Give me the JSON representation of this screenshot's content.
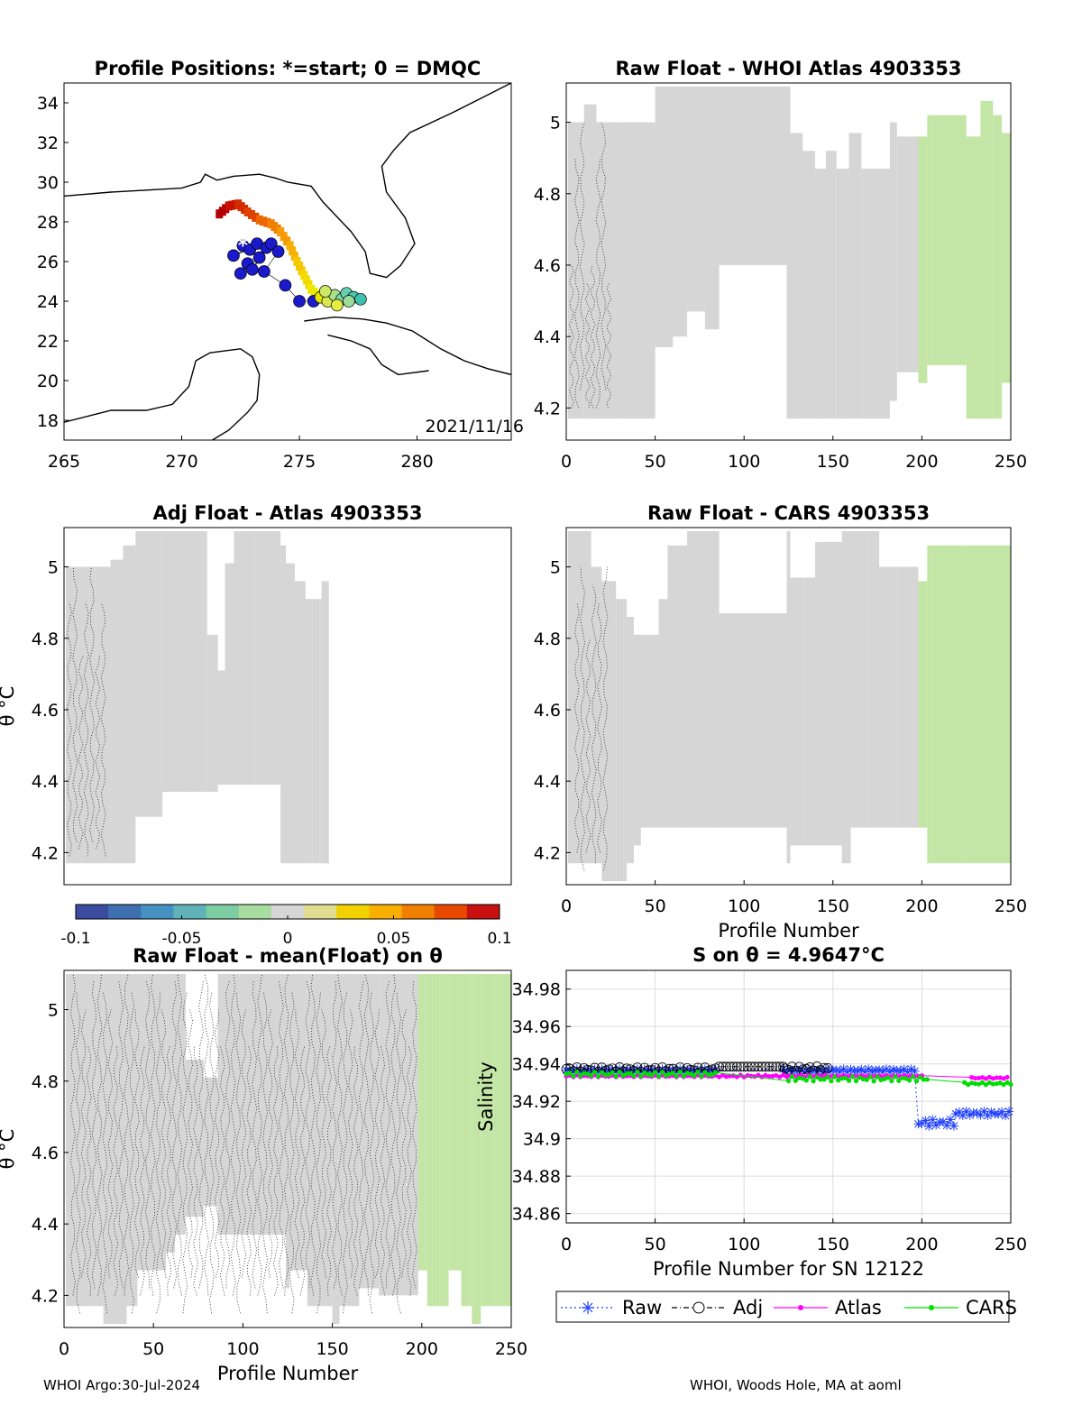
{
  "figure": {
    "footer_left": "WHOI Argo:30-Jul-2024",
    "footer_right": "WHOI, Woods Hole, MA at aoml"
  },
  "colors": {
    "grey_fill": "#d6d6d6",
    "green_fill": "#c3e6a6",
    "raw": "#1f3fff",
    "adj": "#000000",
    "atlas": "#ff00ff",
    "cars": "#00dd00"
  },
  "chart_data": [
    {
      "id": "map",
      "type": "scatter",
      "title": "Profile Positions: *=start; 0 = DMQC",
      "xlim": [
        265,
        284
      ],
      "ylim": [
        17,
        35
      ],
      "x_ticks": [
        265,
        270,
        275,
        280
      ],
      "y_ticks": [
        18,
        20,
        22,
        24,
        26,
        28,
        30,
        32,
        34
      ],
      "annotation": "2021/11/16",
      "track": [
        {
          "lon": 272.6,
          "lat": 26.8,
          "color": "#1a1acc"
        },
        {
          "lon": 272.9,
          "lat": 26.6,
          "color": "#1a1acc"
        },
        {
          "lon": 272.2,
          "lat": 26.3,
          "color": "#1a1acc"
        },
        {
          "lon": 273.2,
          "lat": 26.9,
          "color": "#1a1acc"
        },
        {
          "lon": 273.6,
          "lat": 26.7,
          "color": "#1a1acc"
        },
        {
          "lon": 272.8,
          "lat": 25.9,
          "color": "#1a1acc"
        },
        {
          "lon": 272.5,
          "lat": 25.4,
          "color": "#1a1acc"
        },
        {
          "lon": 273.3,
          "lat": 26.2,
          "color": "#1a1acc"
        },
        {
          "lon": 273.0,
          "lat": 25.6,
          "color": "#1a1acc"
        },
        {
          "lon": 273.8,
          "lat": 26.9,
          "color": "#1a1acc"
        },
        {
          "lon": 274.1,
          "lat": 26.5,
          "color": "#1a1acc"
        },
        {
          "lon": 273.5,
          "lat": 25.5,
          "color": "#1a1acc"
        },
        {
          "lon": 274.4,
          "lat": 24.8,
          "color": "#1a1acc"
        },
        {
          "lon": 275.0,
          "lat": 24.0,
          "color": "#1a1acc"
        },
        {
          "lon": 275.6,
          "lat": 24.0,
          "color": "#1a1acc"
        },
        {
          "lon": 275.9,
          "lat": 24.2,
          "color": "#e6e600"
        },
        {
          "lon": 276.2,
          "lat": 24.0,
          "color": "#d9e64d"
        },
        {
          "lon": 276.5,
          "lat": 24.3,
          "color": "#a6e08a"
        },
        {
          "lon": 276.8,
          "lat": 24.1,
          "color": "#80d9a6"
        },
        {
          "lon": 277.0,
          "lat": 24.4,
          "color": "#66d0b3"
        },
        {
          "lon": 277.3,
          "lat": 24.2,
          "color": "#4dc9b3"
        },
        {
          "lon": 277.6,
          "lat": 24.1,
          "color": "#40c0b0"
        },
        {
          "lon": 276.1,
          "lat": 24.5,
          "color": "#ccea66"
        },
        {
          "lon": 276.6,
          "lat": 23.8,
          "color": "#e6ee44"
        },
        {
          "lon": 277.1,
          "lat": 24.0,
          "color": "#99dd99"
        }
      ],
      "path": [
        {
          "lon": 271.6,
          "lat": 28.4,
          "color": "#b30000"
        },
        {
          "lon": 272.0,
          "lat": 28.8,
          "color": "#c81000"
        },
        {
          "lon": 272.4,
          "lat": 28.9,
          "color": "#d42a00"
        },
        {
          "lon": 272.8,
          "lat": 28.5,
          "color": "#e04000"
        },
        {
          "lon": 273.3,
          "lat": 28.1,
          "color": "#ee6600"
        },
        {
          "lon": 273.8,
          "lat": 27.9,
          "color": "#f28000"
        },
        {
          "lon": 274.2,
          "lat": 27.5,
          "color": "#f59a00"
        },
        {
          "lon": 274.6,
          "lat": 26.8,
          "color": "#f7b000"
        },
        {
          "lon": 274.9,
          "lat": 26.0,
          "color": "#f5c800"
        },
        {
          "lon": 275.2,
          "lat": 25.3,
          "color": "#f2dc00"
        },
        {
          "lon": 275.5,
          "lat": 24.6,
          "color": "#eaea00"
        },
        {
          "lon": 275.9,
          "lat": 24.2,
          "color": "#e6e600"
        }
      ]
    },
    {
      "id": "whoi",
      "type": "heatmap",
      "title": "Raw Float - WHOI Atlas  4903353",
      "xlim": [
        0,
        250
      ],
      "ylim": [
        4.11,
        5.11
      ],
      "x_ticks": [
        0,
        50,
        100,
        150,
        200,
        250
      ],
      "y_ticks": [
        4.2,
        4.4,
        4.6,
        4.8,
        5
      ],
      "x_tick_labels": [
        "0",
        "50",
        "100",
        "150",
        "200",
        "250"
      ],
      "y_tick_labels": [
        "4.2",
        "4.4",
        "4.6",
        "4.8",
        "5"
      ],
      "grey_blocks": [
        [
          1,
          4.17,
          5.0
        ],
        [
          10,
          4.17,
          5.05
        ],
        [
          17,
          4.17,
          5.0
        ],
        [
          30,
          4.17,
          5.0
        ],
        [
          50,
          4.37,
          5.1
        ],
        [
          60,
          4.4,
          5.1
        ],
        [
          68,
          4.47,
          5.1
        ],
        [
          78,
          4.42,
          5.1
        ],
        [
          86,
          4.6,
          5.1
        ],
        [
          124,
          4.17,
          5.1
        ],
        [
          126,
          4.17,
          4.97
        ],
        [
          133,
          4.17,
          4.92
        ],
        [
          140,
          4.17,
          4.87
        ],
        [
          146,
          4.17,
          4.92
        ],
        [
          152,
          4.17,
          4.87
        ],
        [
          159,
          4.17,
          4.97
        ],
        [
          166,
          4.17,
          4.87
        ],
        [
          182,
          4.22,
          5.0
        ],
        [
          186,
          4.3,
          4.96
        ],
        [
          198,
          4.3,
          4.96
        ]
      ],
      "green_blocks": [
        [
          198,
          4.27,
          4.96
        ],
        [
          203,
          4.32,
          5.02
        ],
        [
          206,
          4.32,
          5.02
        ],
        [
          225,
          4.17,
          4.96
        ],
        [
          233,
          4.17,
          5.06
        ],
        [
          240,
          4.17,
          5.02
        ],
        [
          245,
          4.27,
          4.97
        ],
        [
          250,
          4.27,
          4.97
        ]
      ],
      "lines": [
        [
          4.2,
          4.6
        ],
        [
          4.2,
          4.9
        ],
        [
          4.25,
          5.0
        ],
        [
          4.2,
          4.55
        ]
      ],
      "line_x_range": [
        3,
        24
      ],
      "xlabel": "",
      "ylabel": ""
    },
    {
      "id": "adj",
      "type": "heatmap",
      "title": "Adj Float - Atlas  4903353",
      "xlim": [
        0,
        250
      ],
      "ylim": [
        4.11,
        5.11
      ],
      "x_ticks": [],
      "y_ticks": [
        4.2,
        4.4,
        4.6,
        4.8,
        5
      ],
      "y_tick_labels": [
        "4.2",
        "4.4",
        "4.6",
        "4.8",
        "5"
      ],
      "ylabel": "θ °C",
      "grey_blocks": [
        [
          1,
          4.17,
          5.0
        ],
        [
          18,
          4.17,
          5.0
        ],
        [
          26,
          4.17,
          5.02
        ],
        [
          33,
          4.17,
          5.06
        ],
        [
          40,
          4.3,
          5.1
        ],
        [
          55,
          4.37,
          5.1
        ],
        [
          68,
          4.37,
          5.1
        ],
        [
          80,
          4.37,
          4.81
        ],
        [
          86,
          4.39,
          4.71
        ],
        [
          90,
          4.39,
          5.01
        ],
        [
          95,
          4.39,
          5.1
        ],
        [
          106,
          4.39,
          5.1
        ],
        [
          121,
          4.17,
          5.06
        ],
        [
          124,
          4.17,
          5.01
        ],
        [
          129,
          4.17,
          4.96
        ],
        [
          135,
          4.17,
          4.91
        ],
        [
          139,
          4.17,
          4.91
        ],
        [
          144,
          4.17,
          4.96
        ],
        [
          148,
          4.17,
          4.96
        ]
      ],
      "green_blocks": [],
      "lines": [
        [
          4.19,
          4.9
        ],
        [
          4.23,
          5.0
        ],
        [
          4.21,
          4.75
        ]
      ],
      "line_x_range": [
        3,
        22
      ]
    },
    {
      "id": "cars",
      "type": "heatmap",
      "title": "Raw Float - CARS  4903353",
      "xlim": [
        0,
        250
      ],
      "ylim": [
        4.11,
        5.11
      ],
      "x_ticks": [
        0,
        50,
        100,
        150,
        200,
        250
      ],
      "y_ticks": [
        4.2,
        4.4,
        4.6,
        4.8,
        5
      ],
      "x_tick_labels": [
        "0",
        "50",
        "100",
        "150",
        "200",
        "250"
      ],
      "y_tick_labels": [
        "4.2",
        "4.4",
        "4.6",
        "4.8",
        "5"
      ],
      "xlabel": "Profile Number",
      "grey_blocks": [
        [
          1,
          4.17,
          5.1
        ],
        [
          14,
          4.17,
          5.0
        ],
        [
          20,
          4.12,
          4.96
        ],
        [
          28,
          4.12,
          4.91
        ],
        [
          34,
          4.17,
          4.86
        ],
        [
          38,
          4.22,
          4.81
        ],
        [
          42,
          4.27,
          4.81
        ],
        [
          52,
          4.27,
          4.91
        ],
        [
          57,
          4.27,
          5.06
        ],
        [
          68,
          4.27,
          5.1
        ],
        [
          86,
          4.27,
          4.87
        ],
        [
          124,
          4.17,
          5.1
        ],
        [
          126,
          4.22,
          4.97
        ],
        [
          134,
          4.22,
          4.97
        ],
        [
          140,
          4.22,
          5.07
        ],
        [
          145,
          4.22,
          5.07
        ],
        [
          155,
          4.17,
          5.1
        ],
        [
          160,
          4.27,
          5.1
        ],
        [
          170,
          4.27,
          5.1
        ],
        [
          176,
          4.27,
          5.0
        ],
        [
          187,
          4.27,
          5.0
        ],
        [
          198,
          4.27,
          5.0
        ]
      ],
      "green_blocks": [
        [
          198,
          4.27,
          4.96
        ],
        [
          203,
          4.17,
          5.06
        ],
        [
          206,
          4.17,
          5.06
        ],
        [
          225,
          4.17,
          5.06
        ],
        [
          233,
          4.17,
          5.06
        ],
        [
          250,
          4.17,
          5.06
        ]
      ],
      "lines": [
        [
          4.2,
          4.9
        ],
        [
          4.15,
          5.0
        ],
        [
          4.2,
          4.8
        ],
        [
          4.17,
          4.95
        ]
      ],
      "line_x_range": [
        6,
        22
      ]
    },
    {
      "id": "mean",
      "type": "heatmap",
      "title": "Raw Float - mean(Float) on θ",
      "xlim": [
        0,
        250
      ],
      "ylim": [
        4.11,
        5.11
      ],
      "x_ticks": [
        0,
        50,
        100,
        150,
        200,
        250
      ],
      "y_ticks": [
        4.2,
        4.4,
        4.6,
        4.8,
        5
      ],
      "x_tick_labels": [
        "0",
        "50",
        "100",
        "150",
        "200",
        "250"
      ],
      "y_tick_labels": [
        "4.2",
        "4.4",
        "4.6",
        "4.8",
        "5"
      ],
      "xlabel": "Profile Number",
      "ylabel": "θ °C",
      "grey_blocks": [
        [
          1,
          4.17,
          5.1
        ],
        [
          18,
          4.17,
          5.1
        ],
        [
          22,
          4.12,
          5.1
        ],
        [
          35,
          4.17,
          5.1
        ],
        [
          41,
          4.27,
          5.1
        ],
        [
          57,
          4.32,
          5.1
        ],
        [
          62,
          4.37,
          5.1
        ],
        [
          68,
          4.42,
          4.86
        ],
        [
          78,
          4.45,
          4.81
        ],
        [
          86,
          4.37,
          5.1
        ],
        [
          124,
          4.22,
          5.1
        ],
        [
          126,
          4.27,
          5.1
        ],
        [
          136,
          4.17,
          5.1
        ],
        [
          150,
          4.12,
          5.1
        ],
        [
          154,
          4.17,
          5.1
        ],
        [
          165,
          4.22,
          5.1
        ],
        [
          176,
          4.2,
          5.1
        ],
        [
          190,
          4.2,
          5.1
        ],
        [
          198,
          4.27,
          5.1
        ]
      ],
      "green_blocks": [
        [
          198,
          4.27,
          5.1
        ],
        [
          203,
          4.17,
          5.1
        ],
        [
          210,
          4.17,
          5.1
        ],
        [
          215,
          4.27,
          5.1
        ],
        [
          222,
          4.17,
          5.1
        ],
        [
          228,
          4.12,
          5.1
        ],
        [
          233,
          4.17,
          5.1
        ],
        [
          240,
          4.17,
          5.1
        ],
        [
          250,
          4.17,
          5.1
        ]
      ],
      "lines": [
        [
          4.2,
          5.1
        ],
        [
          4.15,
          5.05
        ],
        [
          4.25,
          5.0
        ],
        [
          4.2,
          4.9
        ],
        [
          4.22,
          5.08
        ]
      ],
      "line_x_range": [
        5,
        196
      ]
    },
    {
      "id": "salinity",
      "type": "line",
      "title": "S on θ = 4.9647°C",
      "xlabel": "Profile Number for SN 12122",
      "ylabel": "Salinity",
      "xlim": [
        0,
        250
      ],
      "ylim": [
        34.855,
        34.99
      ],
      "x_ticks": [
        0,
        50,
        100,
        150,
        200,
        250
      ],
      "x_tick_labels": [
        "0",
        "50",
        "100",
        "150",
        "200",
        "250"
      ],
      "y_ticks": [
        34.86,
        34.88,
        34.9,
        34.92,
        34.94,
        34.96,
        34.98
      ],
      "y_tick_labels": [
        "34.86",
        "34.88",
        "34.9",
        "34.92",
        "34.94",
        "34.96",
        "34.98"
      ],
      "grid": true,
      "legend": {
        "position": "bottom",
        "entries": [
          "Raw",
          "Adj",
          "Atlas",
          "CARS"
        ]
      },
      "series": [
        {
          "name": "Raw",
          "segments": [
            {
              "x0": 0,
              "x1": 85,
              "y": 34.9365,
              "amp": 0.0008
            },
            {
              "x0": 122,
              "x1": 197,
              "y": 34.9365,
              "amp": 0.0008
            },
            {
              "x0": 198,
              "x1": 218,
              "y": 34.9085,
              "amp": 0.0018
            },
            {
              "x0": 219,
              "x1": 250,
              "y": 34.9135,
              "amp": 0.0012
            }
          ]
        },
        {
          "name": "Adj",
          "segments": [
            {
              "x0": 0,
              "x1": 85,
              "y": 34.937,
              "amp": 0.0012
            },
            {
              "x0": 86,
              "x1": 122,
              "y": 34.9385,
              "amp": 0
            },
            {
              "x0": 123,
              "x1": 148,
              "y": 34.9375,
              "amp": 0.0012
            }
          ]
        },
        {
          "name": "Atlas",
          "segments": [
            {
              "x0": 0,
              "x1": 150,
              "y": 34.9335,
              "amp": 0.0005
            },
            {
              "x0": 150,
              "x1": 200,
              "y": 34.9335,
              "amp": 0.0003
            },
            {
              "x0": 228,
              "x1": 248,
              "y": 34.9325,
              "amp": 0.0004
            }
          ]
        },
        {
          "name": "CARS",
          "segments": [
            {
              "x0": 0,
              "x1": 85,
              "y": 34.9345,
              "amp": 0.0012
            },
            {
              "x0": 125,
              "x1": 204,
              "y": 34.932,
              "amp": 0.0012
            },
            {
              "x0": 224,
              "x1": 250,
              "y": 34.9295,
              "amp": 0.0006
            }
          ]
        }
      ]
    },
    {
      "id": "colorbar",
      "type": "heatmap",
      "range": [
        -0.1,
        0.1
      ],
      "ticks": [
        -0.1,
        -0.05,
        0,
        0.05,
        0.1
      ],
      "tick_labels": [
        "-0.1",
        "-0.05",
        "0",
        "0.05",
        "0.1"
      ],
      "colors": [
        "#3b4c9f",
        "#3f6fb0",
        "#4591c2",
        "#5fb3b8",
        "#7ecca1",
        "#a9dca0",
        "#d6d6d6",
        "#e0dc90",
        "#f1d200",
        "#f7b000",
        "#f28000",
        "#e84800",
        "#c81010"
      ]
    }
  ]
}
